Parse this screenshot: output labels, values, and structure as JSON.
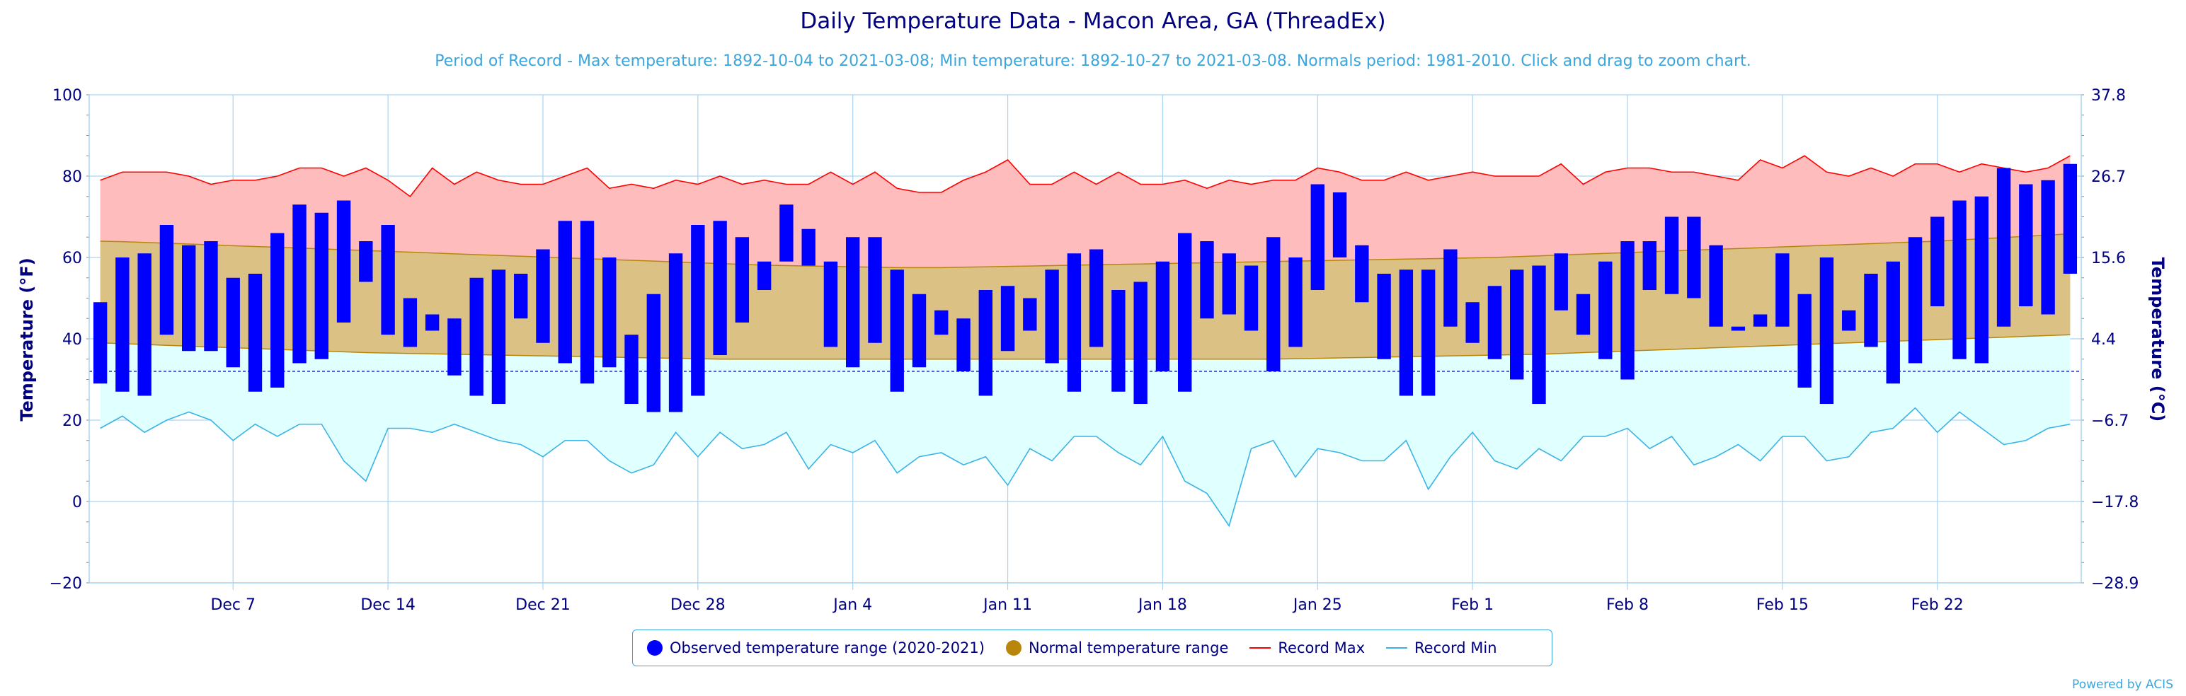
{
  "title": "Daily Temperature Data - Macon Area, GA (ThreadEx)",
  "subtitle": "Period of Record - Max temperature: 1892-10-04 to 2021-03-08; Min temperature: 1892-10-27 to 2021-03-08. Normals period: 1981-2010. Click and drag to zoom chart.",
  "credits": "Powered by ACIS",
  "legend": {
    "observed": "Observed temperature range (2020-2021)",
    "normal": "Normal temperature range",
    "record_max": "Record Max",
    "record_min": "Record Min"
  },
  "colors": {
    "observed": "#0000ff",
    "normal_fill": "#dcc185",
    "normal_line": "#b8860b",
    "record_max_fill": "#ffbcbc",
    "record_max_line": "#ff0000",
    "record_min_fill": "#e0ffff",
    "record_min_line": "#3ab4e6",
    "axis_text": "#000080",
    "grid": "#a8d4f0"
  },
  "chart_data": {
    "type": "bar",
    "start_date": "2020-12-01",
    "xlabel": "",
    "ylabel": "Temperature (°F)",
    "ylabel_right": "Temperature (°C)",
    "ylim": [
      -20,
      100
    ],
    "yticks": [
      -20,
      0,
      20,
      40,
      60,
      80,
      100
    ],
    "yticks_right": [
      "-28.9",
      "-17.8",
      "-6.7",
      "4.4",
      "15.6",
      "26.7",
      "37.8"
    ],
    "xtick_labels": [
      "Dec 7",
      "Dec 14",
      "Dec 21",
      "Dec 28",
      "Jan 4",
      "Jan 11",
      "Jan 18",
      "Jan 25",
      "Feb 1",
      "Feb 8",
      "Feb 15",
      "Feb 22"
    ],
    "grid": true,
    "legend_position": "bottom",
    "observed_max": [
      49,
      60,
      61,
      68,
      63,
      64,
      55,
      56,
      66,
      73,
      71,
      74,
      64,
      68,
      50,
      46,
      45,
      55,
      57,
      56,
      62,
      69,
      69,
      60,
      41,
      51,
      61,
      68,
      69,
      65,
      59,
      73,
      67,
      59,
      65,
      65,
      57,
      51,
      47,
      45,
      52,
      53,
      50,
      57,
      61,
      62,
      52,
      54,
      59,
      66,
      64,
      61,
      58,
      65,
      60,
      78,
      76,
      63,
      56,
      57,
      57,
      62,
      49,
      53,
      57,
      58,
      61,
      51,
      59,
      64,
      64,
      70,
      70,
      63,
      43,
      46,
      61,
      51,
      60,
      47,
      56,
      59,
      65,
      70,
      74,
      75,
      82,
      78,
      79,
      83
    ],
    "observed_min": [
      29,
      27,
      26,
      41,
      37,
      37,
      33,
      27,
      28,
      34,
      35,
      44,
      54,
      41,
      38,
      42,
      31,
      26,
      24,
      45,
      39,
      34,
      29,
      33,
      24,
      22,
      22,
      26,
      36,
      44,
      52,
      59,
      58,
      38,
      33,
      39,
      27,
      33,
      41,
      32,
      26,
      37,
      42,
      34,
      27,
      38,
      27,
      24,
      32,
      27,
      45,
      46,
      42,
      32,
      38,
      52,
      60,
      49,
      35,
      26,
      26,
      43,
      39,
      35,
      30,
      24,
      47,
      41,
      35,
      30,
      52,
      51,
      50,
      43,
      42,
      43,
      43,
      28,
      24,
      42,
      38,
      29,
      34,
      48,
      35,
      34,
      43,
      48,
      46,
      56
    ],
    "record_max": [
      79,
      81,
      81,
      81,
      80,
      78,
      79,
      79,
      80,
      82,
      82,
      80,
      82,
      79,
      75,
      82,
      78,
      81,
      79,
      78,
      78,
      80,
      82,
      77,
      78,
      77,
      79,
      78,
      80,
      78,
      79,
      78,
      78,
      81,
      78,
      81,
      77,
      76,
      76,
      79,
      81,
      84,
      78,
      78,
      81,
      78,
      81,
      78,
      78,
      79,
      77,
      79,
      78,
      79,
      79,
      82,
      81,
      79,
      79,
      81,
      79,
      80,
      81,
      80,
      80,
      80,
      83,
      78,
      81,
      82,
      82,
      81,
      81,
      80,
      79,
      84,
      82,
      85,
      81,
      80,
      82,
      80,
      83,
      83,
      81,
      83,
      82,
      81,
      82,
      85
    ],
    "record_min": [
      18,
      21,
      17,
      20,
      22,
      20,
      15,
      19,
      16,
      19,
      19,
      10,
      5,
      18,
      18,
      17,
      19,
      17,
      15,
      14,
      11,
      15,
      15,
      10,
      7,
      9,
      17,
      11,
      17,
      13,
      14,
      17,
      8,
      14,
      12,
      15,
      7,
      11,
      12,
      9,
      11,
      4,
      13,
      10,
      16,
      16,
      12,
      9,
      16,
      5,
      2,
      -6,
      13,
      15,
      6,
      13,
      12,
      10,
      10,
      15,
      3,
      11,
      17,
      10,
      8,
      13,
      10,
      16,
      16,
      18,
      13,
      16,
      9,
      11,
      14,
      10,
      16,
      16,
      10,
      11,
      17,
      18,
      23,
      17,
      22,
      18,
      14,
      15,
      18,
      19
    ],
    "normal_max": [
      64,
      63.9,
      63.7,
      63.5,
      63.3,
      63.1,
      62.9,
      62.7,
      62.5,
      62.3,
      62.1,
      61.9,
      61.7,
      61.5,
      61.3,
      61.1,
      60.9,
      60.7,
      60.5,
      60.3,
      60.1,
      59.9,
      59.7,
      59.5,
      59.3,
      59.1,
      58.9,
      58.7,
      58.5,
      58.3,
      58.1,
      58,
      57.9,
      57.8,
      57.7,
      57.6,
      57.5,
      57.5,
      57.5,
      57.6,
      57.7,
      57.8,
      57.9,
      58,
      58.1,
      58.2,
      58.3,
      58.4,
      58.5,
      58.6,
      58.7,
      58.8,
      58.9,
      59,
      59.1,
      59.2,
      59.3,
      59.4,
      59.5,
      59.6,
      59.7,
      59.8,
      59.9,
      60,
      60.2,
      60.4,
      60.6,
      60.8,
      61,
      61.2,
      61.4,
      61.6,
      61.8,
      62,
      62.2,
      62.4,
      62.6,
      62.8,
      63,
      63.2,
      63.4,
      63.6,
      63.8,
      64,
      64.3,
      64.6,
      64.9,
      65.2,
      65.5,
      65.8
    ],
    "normal_min": [
      39,
      38.8,
      38.6,
      38.4,
      38.2,
      38,
      37.8,
      37.6,
      37.4,
      37.2,
      37,
      36.8,
      36.6,
      36.5,
      36.4,
      36.3,
      36.2,
      36.1,
      36,
      35.9,
      35.8,
      35.7,
      35.6,
      35.5,
      35.4,
      35.3,
      35.2,
      35.1,
      35,
      35,
      35,
      35,
      35,
      35,
      35,
      35,
      35,
      35,
      35,
      35,
      35,
      35,
      35,
      35,
      35,
      35,
      35,
      35,
      35,
      35,
      35,
      35,
      35,
      35,
      35.1,
      35.2,
      35.3,
      35.4,
      35.5,
      35.6,
      35.7,
      35.8,
      35.9,
      36,
      36.1,
      36.2,
      36.4,
      36.6,
      36.8,
      37,
      37.2,
      37.4,
      37.6,
      37.8,
      38,
      38.2,
      38.4,
      38.6,
      38.8,
      39,
      39.2,
      39.4,
      39.6,
      39.8,
      40,
      40.2,
      40.4,
      40.6,
      40.8,
      41
    ]
  }
}
